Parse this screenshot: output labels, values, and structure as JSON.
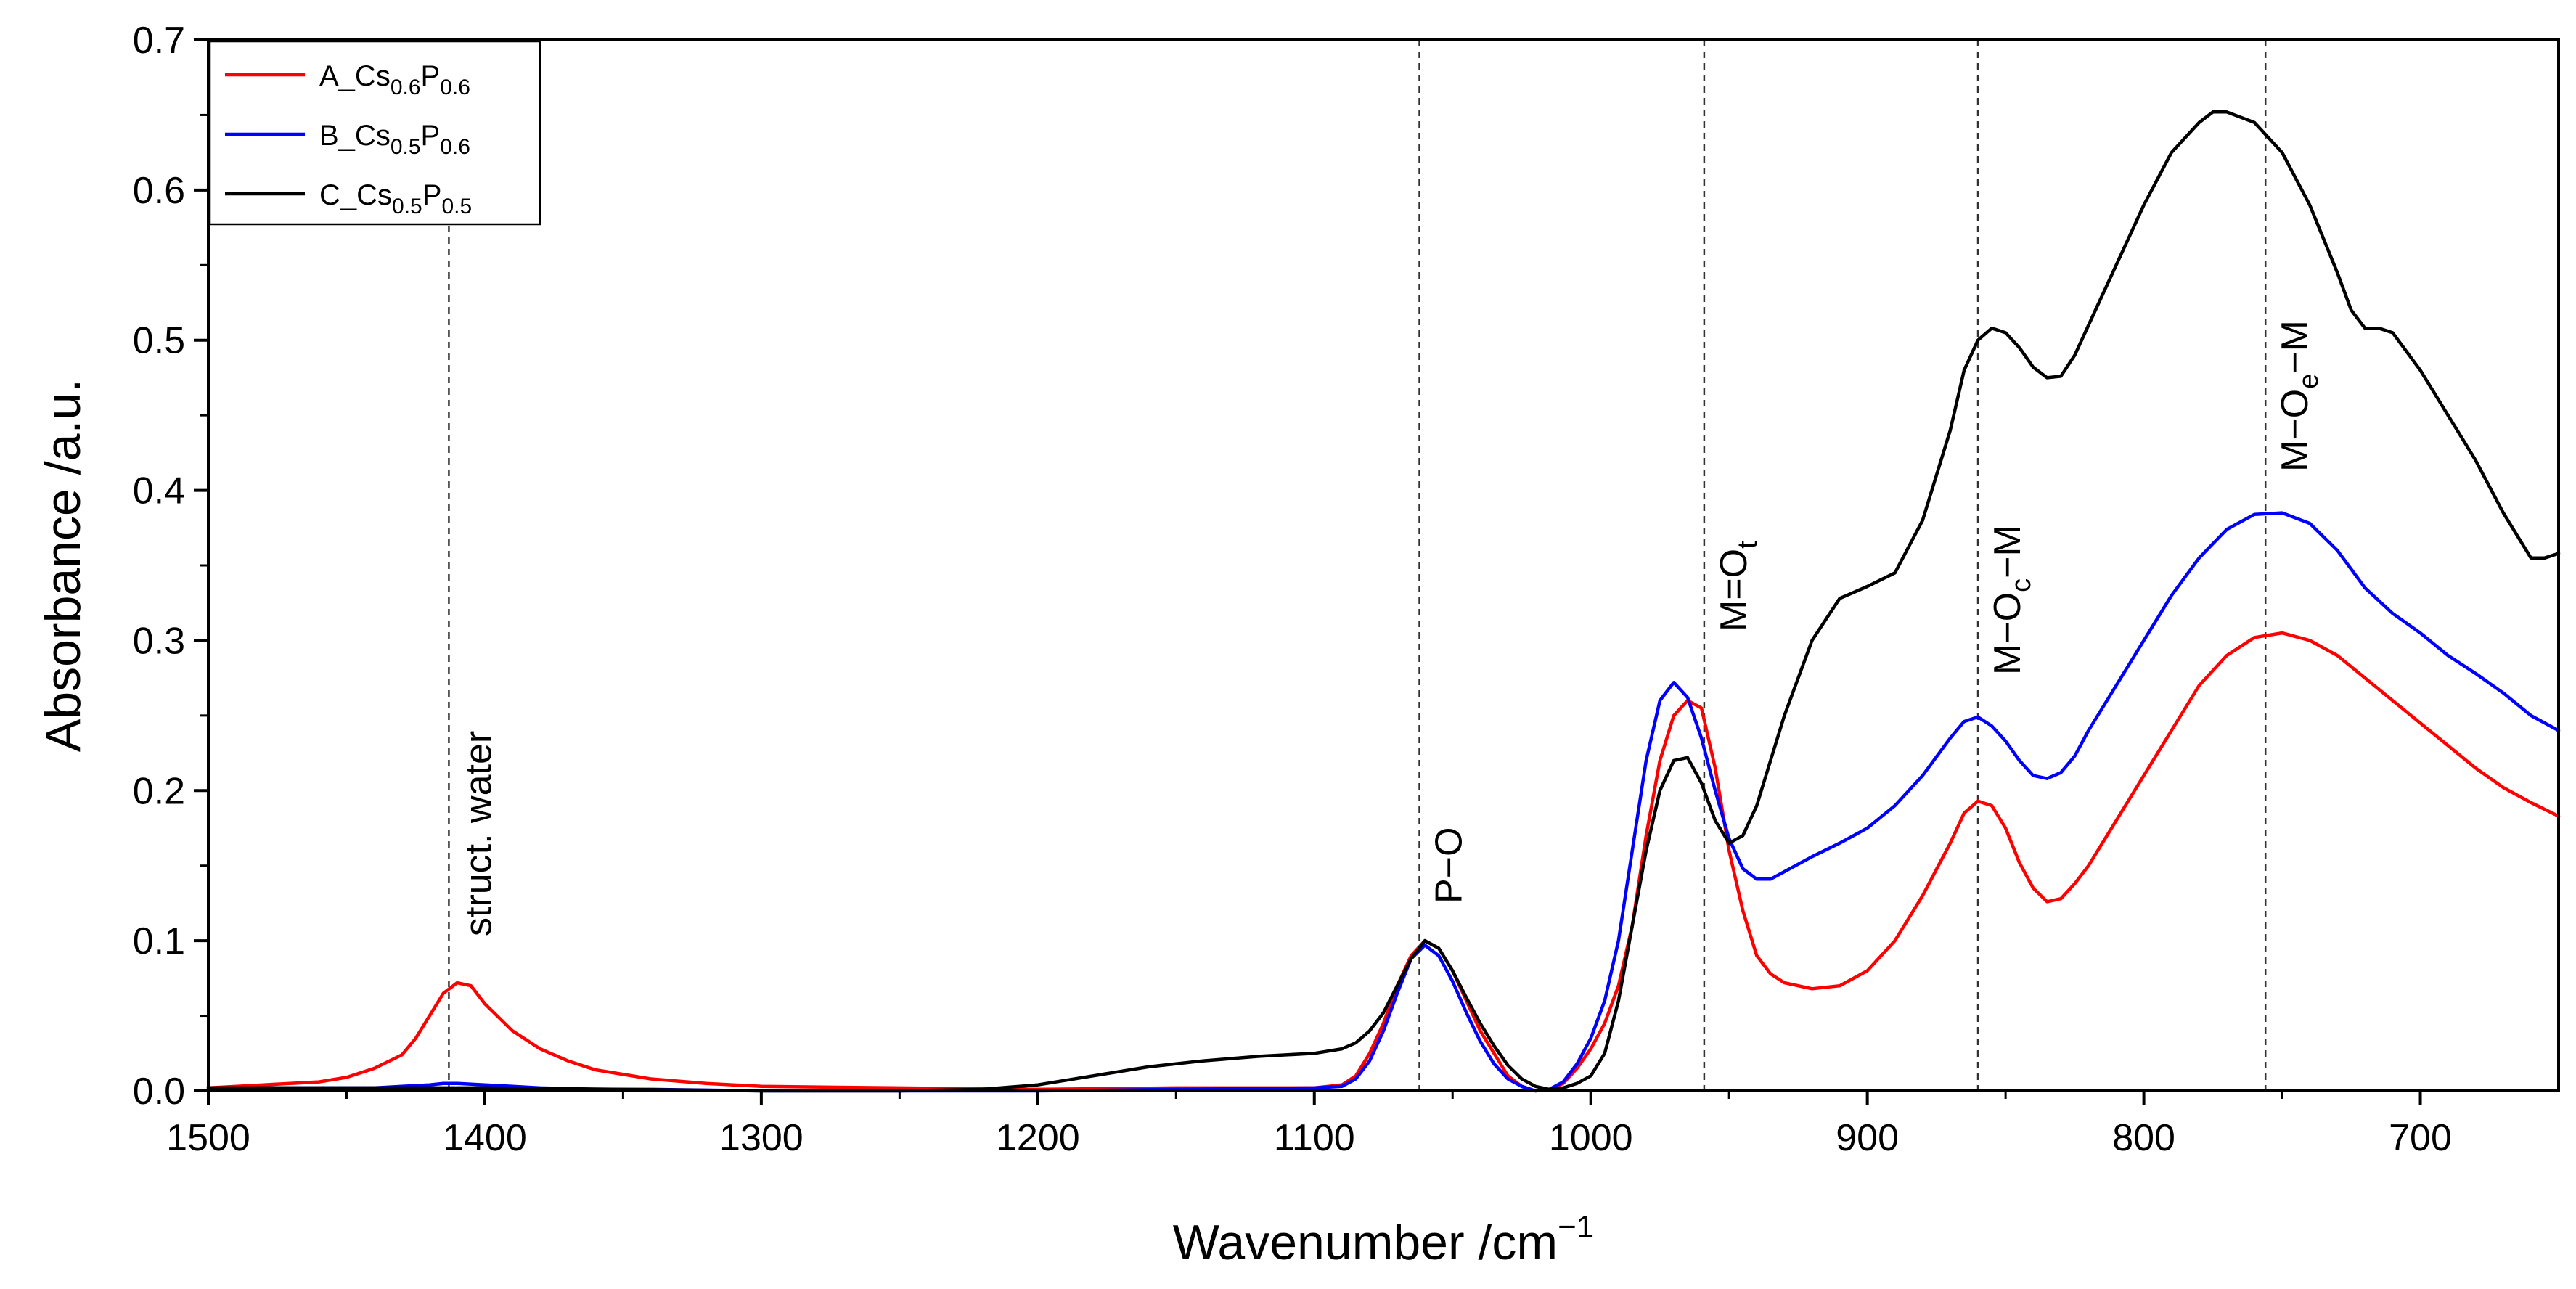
{
  "chart_data": {
    "type": "line",
    "title": "",
    "xlabel_base": "Wavenumber /cm",
    "xlabel_sup": "−1",
    "ylabel": "Absorbance /a.u.",
    "xlim": [
      1500,
      650
    ],
    "ylim": [
      0,
      0.7
    ],
    "xticks": [
      1500,
      1400,
      1300,
      1200,
      1100,
      1000,
      900,
      800,
      700
    ],
    "yticks": [
      0.0,
      0.1,
      0.2,
      0.3,
      0.4,
      0.5,
      0.6,
      0.7
    ],
    "grid": false,
    "legend_position": "top-left",
    "series": [
      {
        "name": "A_Cs0.6P0.6",
        "label": {
          "p1": "A_Cs",
          "s1": "0.6",
          "p2": "P",
          "s2": "0.6"
        },
        "color": "#ff0000",
        "x": [
          1500,
          1480,
          1460,
          1450,
          1440,
          1430,
          1425,
          1420,
          1415,
          1410,
          1405,
          1400,
          1390,
          1380,
          1370,
          1360,
          1340,
          1320,
          1300,
          1250,
          1200,
          1150,
          1100,
          1090,
          1085,
          1080,
          1075,
          1070,
          1065,
          1060,
          1055,
          1050,
          1045,
          1040,
          1035,
          1030,
          1025,
          1020,
          1015,
          1010,
          1005,
          1000,
          995,
          990,
          985,
          980,
          975,
          970,
          965,
          960,
          955,
          950,
          945,
          940,
          935,
          930,
          920,
          910,
          900,
          890,
          880,
          870,
          865,
          860,
          855,
          850,
          845,
          840,
          835,
          830,
          825,
          820,
          810,
          800,
          790,
          780,
          770,
          760,
          750,
          740,
          730,
          720,
          710,
          700,
          690,
          680,
          670,
          660,
          650
        ],
        "y": [
          0.002,
          0.004,
          0.006,
          0.009,
          0.015,
          0.024,
          0.035,
          0.05,
          0.065,
          0.072,
          0.07,
          0.058,
          0.04,
          0.028,
          0.02,
          0.014,
          0.008,
          0.005,
          0.003,
          0.002,
          0.001,
          0.002,
          0.002,
          0.004,
          0.01,
          0.025,
          0.045,
          0.07,
          0.09,
          0.1,
          0.095,
          0.08,
          0.06,
          0.04,
          0.025,
          0.01,
          0.003,
          0.0,
          0.001,
          0.005,
          0.015,
          0.028,
          0.045,
          0.07,
          0.11,
          0.17,
          0.22,
          0.25,
          0.26,
          0.255,
          0.215,
          0.16,
          0.12,
          0.09,
          0.078,
          0.072,
          0.068,
          0.07,
          0.08,
          0.1,
          0.13,
          0.165,
          0.185,
          0.193,
          0.19,
          0.175,
          0.152,
          0.135,
          0.126,
          0.128,
          0.138,
          0.15,
          0.18,
          0.21,
          0.24,
          0.27,
          0.29,
          0.302,
          0.305,
          0.3,
          0.29,
          0.275,
          0.26,
          0.245,
          0.23,
          0.215,
          0.202,
          0.192,
          0.183
        ]
      },
      {
        "name": "B_Cs0.5P0.6",
        "label": {
          "p1": "B_Cs",
          "s1": "0.5",
          "p2": "P",
          "s2": "0.6"
        },
        "color": "#0000ff",
        "x": [
          1500,
          1480,
          1460,
          1440,
          1430,
          1420,
          1415,
          1410,
          1400,
          1390,
          1380,
          1360,
          1340,
          1300,
          1250,
          1200,
          1150,
          1100,
          1090,
          1085,
          1080,
          1075,
          1070,
          1065,
          1060,
          1055,
          1050,
          1045,
          1040,
          1035,
          1030,
          1025,
          1020,
          1015,
          1010,
          1005,
          1000,
          995,
          990,
          985,
          980,
          975,
          970,
          965,
          960,
          955,
          950,
          945,
          940,
          935,
          930,
          920,
          910,
          900,
          890,
          880,
          870,
          865,
          860,
          855,
          850,
          845,
          840,
          835,
          830,
          825,
          820,
          810,
          800,
          790,
          780,
          770,
          760,
          750,
          740,
          730,
          720,
          710,
          700,
          690,
          680,
          670,
          660,
          650
        ],
        "y": [
          0.001,
          0.002,
          0.002,
          0.002,
          0.003,
          0.004,
          0.005,
          0.005,
          0.004,
          0.003,
          0.002,
          0.001,
          0.001,
          0.0,
          0.0,
          0.0,
          0.001,
          0.002,
          0.003,
          0.008,
          0.02,
          0.04,
          0.065,
          0.088,
          0.097,
          0.09,
          0.073,
          0.052,
          0.033,
          0.018,
          0.008,
          0.003,
          0.0,
          0.001,
          0.006,
          0.018,
          0.035,
          0.06,
          0.1,
          0.16,
          0.22,
          0.26,
          0.272,
          0.262,
          0.235,
          0.2,
          0.168,
          0.148,
          0.141,
          0.141,
          0.146,
          0.156,
          0.165,
          0.175,
          0.19,
          0.21,
          0.235,
          0.246,
          0.249,
          0.243,
          0.233,
          0.22,
          0.21,
          0.208,
          0.212,
          0.223,
          0.24,
          0.27,
          0.3,
          0.33,
          0.355,
          0.374,
          0.384,
          0.385,
          0.378,
          0.36,
          0.335,
          0.318,
          0.305,
          0.29,
          0.278,
          0.265,
          0.25,
          0.24
        ]
      },
      {
        "name": "C_Cs0.5P0.5",
        "label": {
          "p1": "C_Cs",
          "s1": "0.5",
          "p2": "P",
          "s2": "0.5"
        },
        "color": "#000000",
        "x": [
          1500,
          1450,
          1420,
          1400,
          1300,
          1250,
          1220,
          1200,
          1180,
          1160,
          1140,
          1120,
          1100,
          1090,
          1085,
          1080,
          1075,
          1070,
          1065,
          1060,
          1055,
          1050,
          1045,
          1040,
          1035,
          1030,
          1025,
          1020,
          1015,
          1010,
          1005,
          1000,
          995,
          990,
          985,
          980,
          975,
          970,
          965,
          960,
          955,
          950,
          945,
          940,
          935,
          930,
          920,
          910,
          900,
          890,
          880,
          870,
          865,
          860,
          855,
          850,
          845,
          840,
          835,
          830,
          825,
          820,
          810,
          800,
          790,
          780,
          775,
          770,
          760,
          750,
          740,
          730,
          725,
          720,
          715,
          710,
          700,
          690,
          680,
          670,
          660,
          655,
          650
        ],
        "y": [
          0.002,
          0.002,
          0.002,
          0.002,
          0.0,
          0.0,
          0.001,
          0.004,
          0.01,
          0.016,
          0.02,
          0.023,
          0.025,
          0.028,
          0.032,
          0.04,
          0.052,
          0.07,
          0.088,
          0.1,
          0.095,
          0.08,
          0.062,
          0.045,
          0.03,
          0.017,
          0.008,
          0.003,
          0.001,
          0.002,
          0.005,
          0.01,
          0.025,
          0.06,
          0.11,
          0.16,
          0.2,
          0.22,
          0.222,
          0.205,
          0.18,
          0.165,
          0.17,
          0.19,
          0.22,
          0.25,
          0.3,
          0.328,
          0.336,
          0.345,
          0.38,
          0.44,
          0.48,
          0.5,
          0.508,
          0.505,
          0.495,
          0.482,
          0.475,
          0.476,
          0.49,
          0.51,
          0.55,
          0.59,
          0.625,
          0.645,
          0.652,
          0.652,
          0.645,
          0.625,
          0.59,
          0.545,
          0.52,
          0.508,
          0.508,
          0.505,
          0.48,
          0.45,
          0.42,
          0.385,
          0.355,
          0.355,
          0.358
        ]
      }
    ],
    "reference_lines": [
      {
        "x": 1413,
        "label": {
          "base": "struct. water",
          "sub": "",
          "tail": ""
        }
      },
      {
        "x": 1062,
        "label": {
          "base": "P−O",
          "sub": "",
          "tail": ""
        }
      },
      {
        "x": 959,
        "label": {
          "base": "M=O",
          "sub": "t",
          "tail": ""
        }
      },
      {
        "x": 860,
        "label": {
          "base": "M−O",
          "sub": "c",
          "tail": "−M"
        }
      },
      {
        "x": 756,
        "label": {
          "base": "M−O",
          "sub": "e",
          "tail": "−M"
        }
      }
    ]
  }
}
